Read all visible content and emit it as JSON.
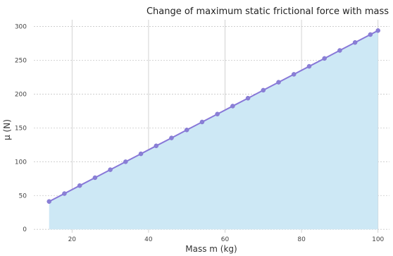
{
  "chart_data": {
    "type": "area",
    "title": "Change of maximum static frictional force with mass",
    "xlabel": "Mass m (kg)",
    "ylabel": "μ (N)",
    "xlim": [
      10,
      103
    ],
    "ylim": [
      -5,
      310
    ],
    "x_ticks": [
      20,
      40,
      60,
      80,
      100
    ],
    "y_ticks": [
      0,
      50,
      100,
      150,
      200,
      250,
      300
    ],
    "grid": true,
    "colors": {
      "line": "#8878d8",
      "marker": "#8a7fd6",
      "fill": "#cde8f5",
      "grid": "#c8c8c8"
    },
    "series": [
      {
        "x": [
          14,
          18,
          22,
          26,
          30,
          34,
          38,
          42,
          46,
          50,
          54,
          58,
          62,
          66,
          70,
          74,
          78,
          82,
          86,
          90,
          94,
          98,
          100
        ],
        "values": [
          41.2,
          52.9,
          64.7,
          76.4,
          88.2,
          100.0,
          111.7,
          123.5,
          135.2,
          147.0,
          158.8,
          170.5,
          182.3,
          194.0,
          205.8,
          217.6,
          229.3,
          241.1,
          252.8,
          264.6,
          276.4,
          288.1,
          294.0
        ]
      }
    ]
  }
}
